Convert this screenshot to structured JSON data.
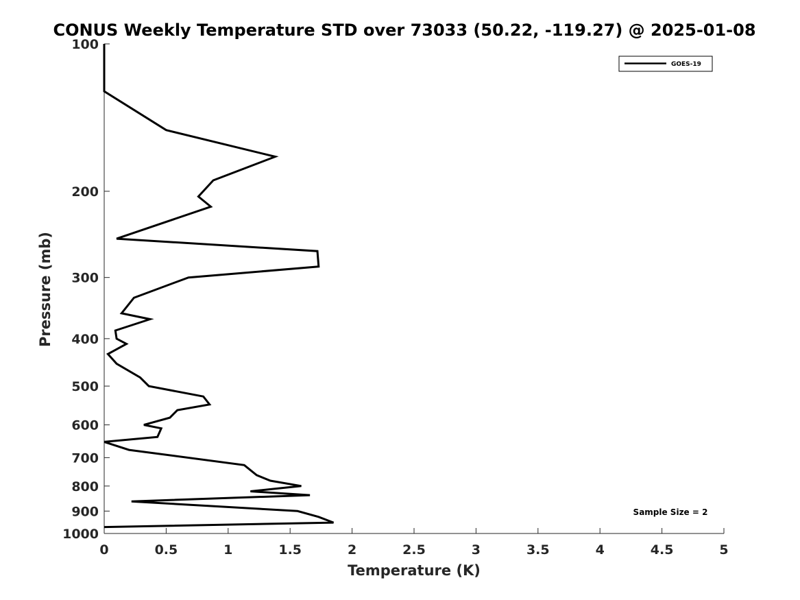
{
  "chart_data": {
    "type": "line",
    "title": "CONUS Weekly Temperature STD over 73033 (50.22, -119.27) @ 2025-01-08",
    "xlabel": "Temperature (K)",
    "ylabel": "Pressure (mb)",
    "xlim": [
      0,
      5
    ],
    "ylim": [
      100,
      1000
    ],
    "yscale": "log",
    "y_reversed": true,
    "grid": false,
    "legend_position": "top-right",
    "xticks": [
      0,
      0.5,
      1,
      1.5,
      2,
      2.5,
      3,
      3.5,
      4,
      4.5,
      5
    ],
    "xtick_labels": [
      "0",
      "0.5",
      "1",
      "1.5",
      "2",
      "2.5",
      "3",
      "3.5",
      "4",
      "4.5",
      "5"
    ],
    "yticks": [
      100,
      200,
      300,
      400,
      500,
      600,
      700,
      800,
      900,
      1000
    ],
    "ytick_labels": [
      "100",
      "200",
      "300",
      "400",
      "500",
      "600",
      "700",
      "800",
      "900",
      "1000"
    ],
    "annotation": "Sample Size = 2",
    "series": [
      {
        "name": "GOES-19",
        "color": "#000000",
        "x": [
          0,
          0,
          0.5,
          1.38,
          0.88,
          0.76,
          0.86,
          0.1,
          1.72,
          1.73,
          0.68,
          0.24,
          0.14,
          0.37,
          0.09,
          0.1,
          0.18,
          0.03,
          0.1,
          0.29,
          0.36,
          0.8,
          0.85,
          0.59,
          0.53,
          0.32,
          0.46,
          0.43,
          0,
          0.2,
          1.13,
          1.23,
          1.34,
          1.59,
          1.18,
          1.66,
          0.22,
          1.56,
          1.73,
          1.85,
          0
        ],
        "y": [
          100,
          125,
          150,
          170,
          190,
          205,
          215,
          250,
          265,
          285,
          300,
          330,
          355,
          365,
          385,
          400,
          410,
          430,
          450,
          480,
          500,
          525,
          545,
          560,
          580,
          600,
          610,
          635,
          650,
          675,
          725,
          760,
          780,
          800,
          820,
          835,
          860,
          900,
          925,
          950,
          970
        ]
      }
    ]
  }
}
